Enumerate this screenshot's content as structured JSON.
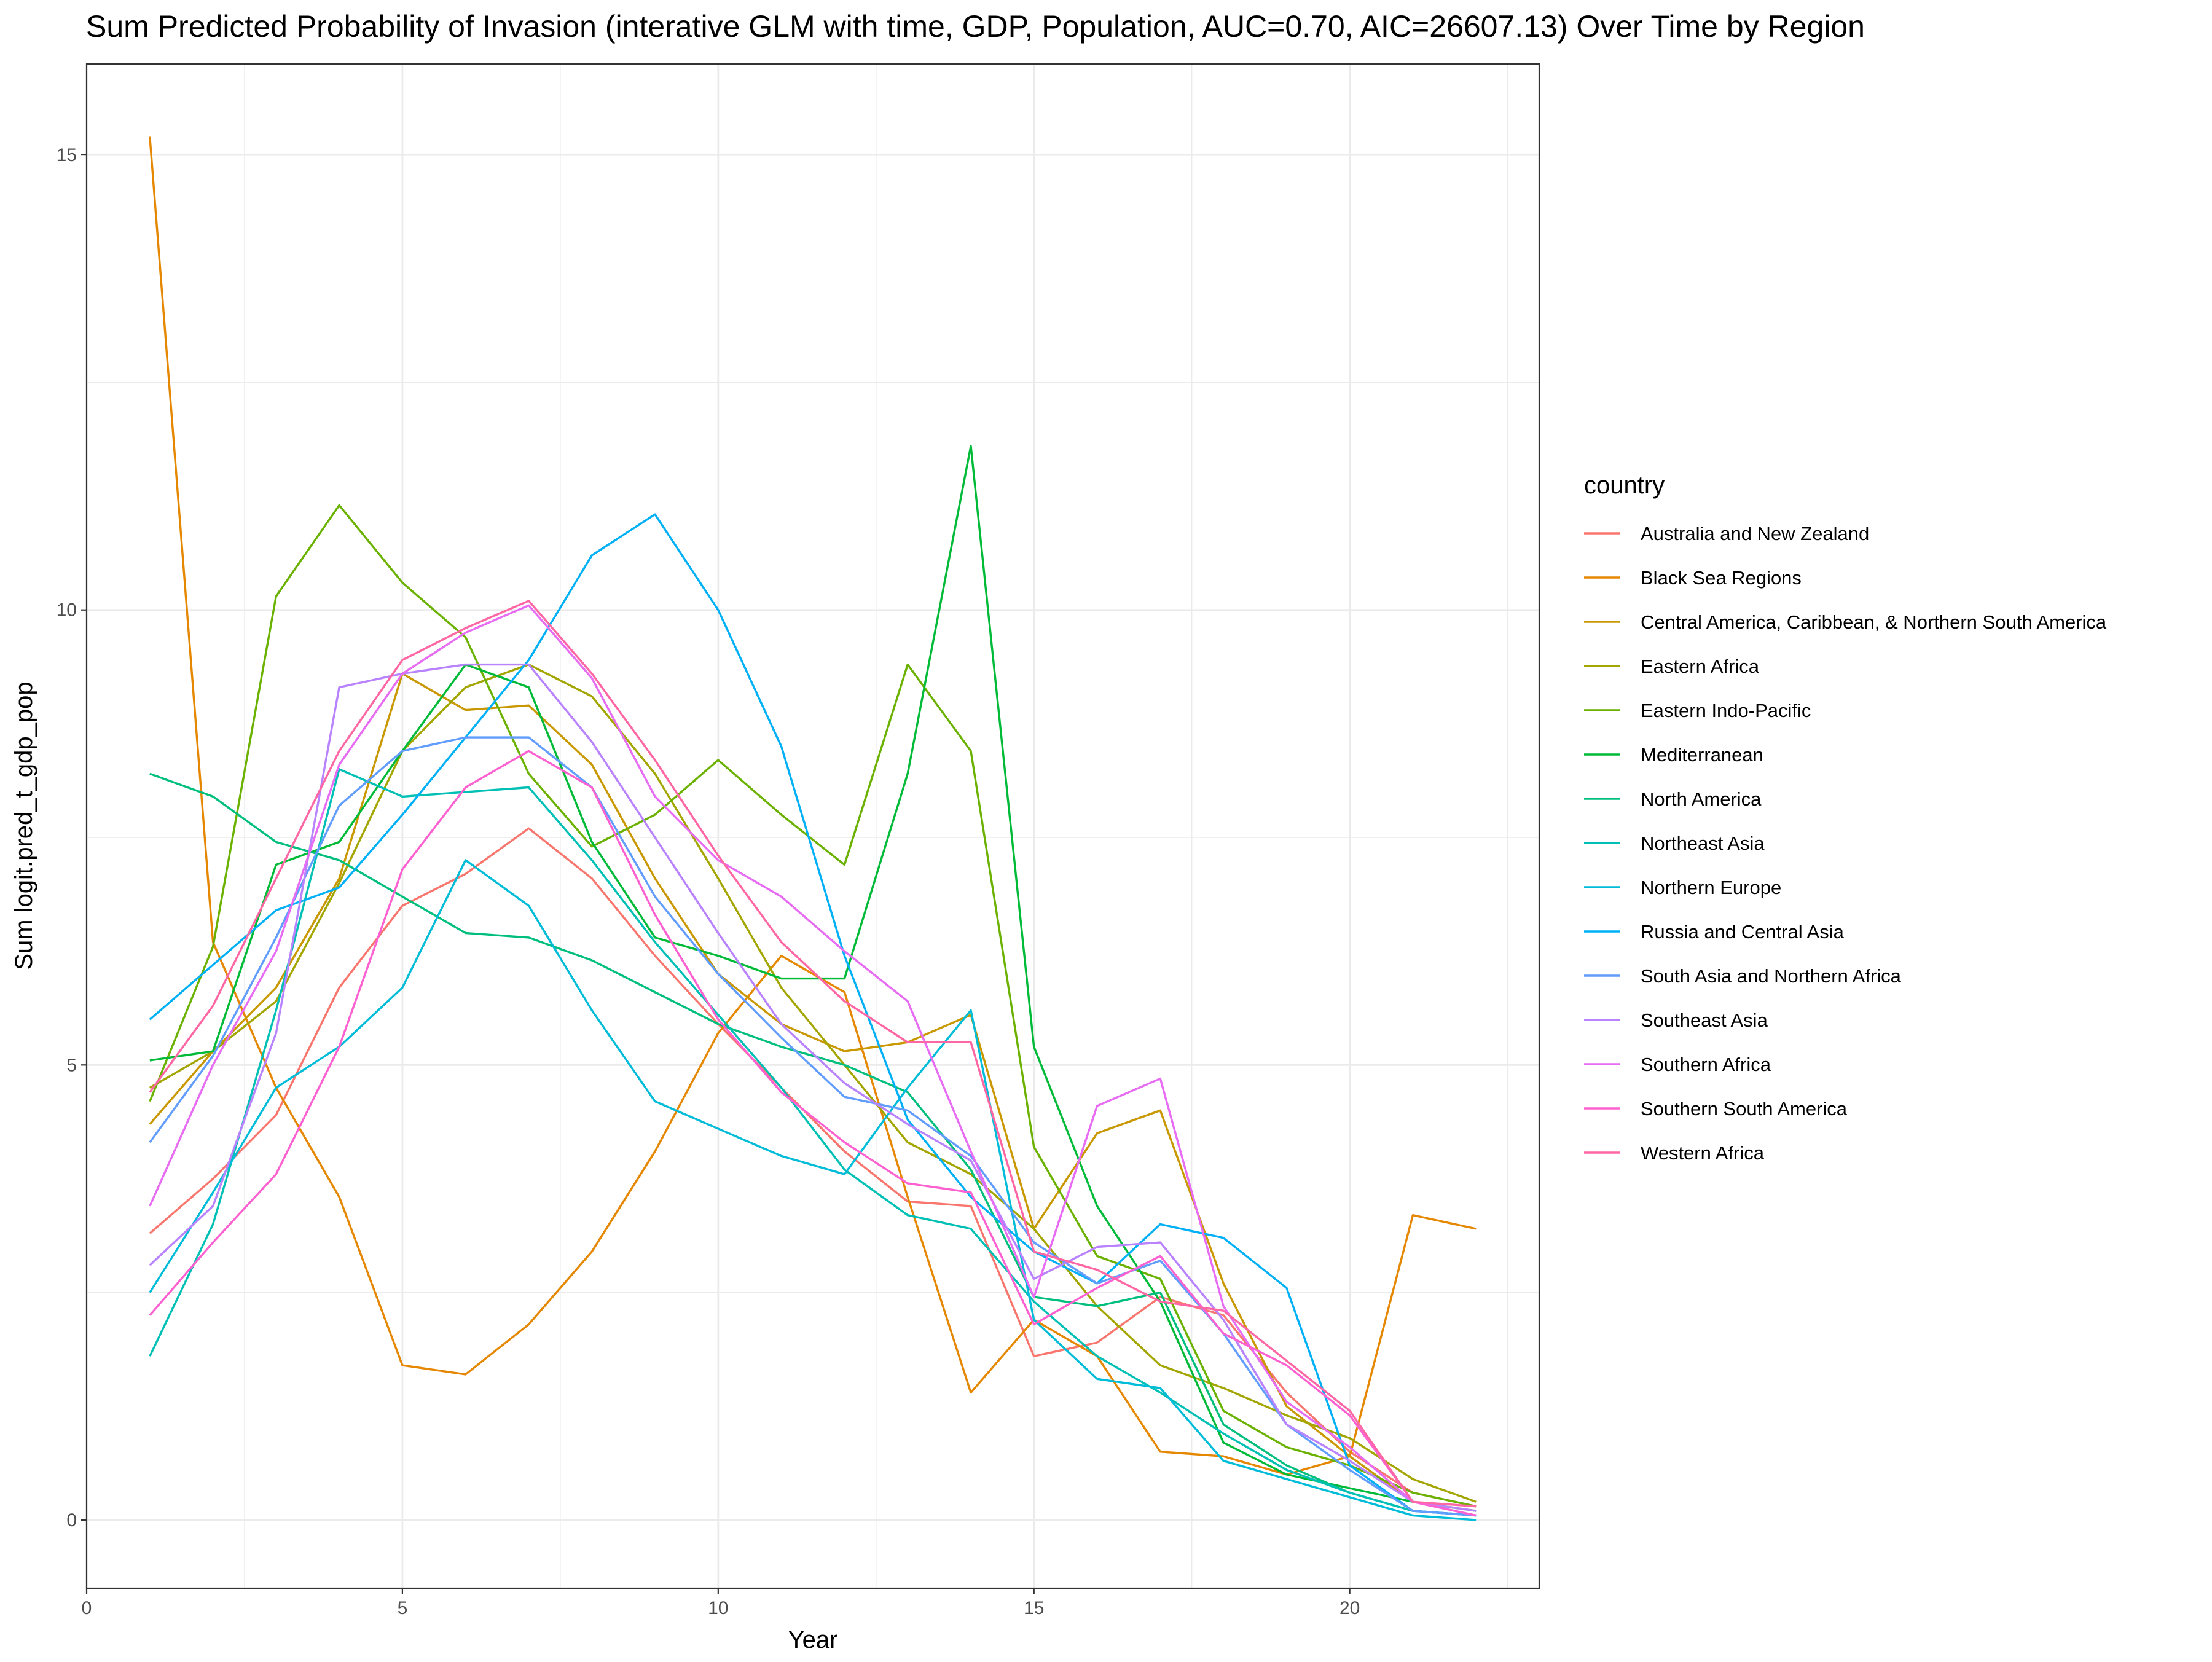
{
  "chart_data": {
    "type": "line",
    "title": "Sum Predicted Probability of Invasion (interative GLM with time, GDP, Population, AUC=0.70, AIC=26607.13) Over Time by Region",
    "xlabel": "Year",
    "ylabel": "Sum logit.pred_t_gdp_pop",
    "xlim": [
      0,
      23
    ],
    "ylim": [
      -0.75,
      16.0
    ],
    "x_ticks": [
      0,
      5,
      10,
      15,
      20
    ],
    "y_ticks": [
      0,
      5,
      10,
      15
    ],
    "x_tick_labels": [
      "0",
      "5",
      "10",
      "15",
      "20"
    ],
    "y_tick_labels": [
      "0",
      "5",
      "10",
      "15"
    ],
    "grid": true,
    "legend_position": "right",
    "legend_title": "country",
    "x": [
      1,
      2,
      3,
      4,
      5,
      6,
      7,
      8,
      9,
      10,
      11,
      12,
      13,
      14,
      15,
      16,
      17,
      18,
      19,
      20,
      21,
      22
    ],
    "series": [
      {
        "name": "Australia and New Zealand",
        "color": "#F8766D",
        "values": [
          3.15,
          3.75,
          4.45,
          5.85,
          6.75,
          7.1,
          7.6,
          7.05,
          6.2,
          5.45,
          4.75,
          4.05,
          3.5,
          3.45,
          1.8,
          1.95,
          2.45,
          2.25,
          1.4,
          0.75,
          0.3,
          0.15
        ]
      },
      {
        "name": "Black Sea Regions",
        "color": "#E58700",
        "values": [
          15.2,
          6.35,
          4.75,
          3.55,
          1.7,
          1.6,
          2.15,
          2.95,
          4.05,
          5.35,
          6.2,
          5.8,
          3.55,
          1.4,
          2.2,
          1.8,
          0.75,
          0.7,
          0.5,
          0.7,
          3.35,
          3.2
        ]
      },
      {
        "name": "Central America, Caribbean, & Northern South America",
        "color": "#C99800",
        "values": [
          4.35,
          5.15,
          5.85,
          7.05,
          9.3,
          8.9,
          8.95,
          8.3,
          7.05,
          6.0,
          5.45,
          5.15,
          5.25,
          5.55,
          3.2,
          4.25,
          4.5,
          2.6,
          1.25,
          0.7,
          0.2,
          0.1
        ]
      },
      {
        "name": "Eastern Africa",
        "color": "#A3A500",
        "values": [
          4.75,
          5.15,
          5.7,
          7.0,
          8.45,
          9.15,
          9.4,
          9.05,
          8.2,
          7.05,
          5.85,
          5.0,
          4.15,
          3.8,
          3.2,
          2.35,
          1.7,
          1.45,
          1.15,
          0.9,
          0.45,
          0.2
        ]
      },
      {
        "name": "Eastern Indo-Pacific",
        "color": "#6BB100",
        "values": [
          4.6,
          6.3,
          10.15,
          11.15,
          10.3,
          9.7,
          8.2,
          7.4,
          7.75,
          8.35,
          7.75,
          7.2,
          9.4,
          8.45,
          4.1,
          2.9,
          2.65,
          1.2,
          0.8,
          0.6,
          0.3,
          0.15
        ]
      },
      {
        "name": "Mediterranean",
        "color": "#00BA38",
        "values": [
          5.05,
          5.15,
          7.2,
          7.45,
          8.45,
          9.4,
          9.15,
          7.45,
          6.4,
          6.2,
          5.95,
          5.95,
          8.2,
          11.8,
          5.2,
          3.45,
          2.4,
          0.85,
          0.5,
          0.35,
          0.2,
          0.1
        ]
      },
      {
        "name": "North America",
        "color": "#00BF7D",
        "values": [
          8.2,
          7.95,
          7.45,
          7.25,
          6.85,
          6.45,
          6.4,
          6.15,
          5.8,
          5.45,
          5.2,
          5.0,
          4.7,
          3.85,
          2.45,
          2.35,
          2.5,
          1.05,
          0.6,
          0.3,
          0.1,
          0.05
        ]
      },
      {
        "name": "Northeast Asia",
        "color": "#00C0B5",
        "values": [
          1.8,
          3.25,
          5.6,
          8.25,
          7.95,
          8.0,
          8.05,
          7.25,
          6.35,
          5.55,
          4.75,
          3.85,
          3.35,
          3.2,
          2.4,
          1.8,
          1.4,
          0.95,
          0.55,
          0.3,
          0.1,
          0.05
        ]
      },
      {
        "name": "Northern Europe",
        "color": "#00BCD8",
        "values": [
          2.5,
          3.6,
          4.75,
          5.2,
          5.85,
          7.25,
          6.75,
          5.6,
          4.6,
          4.3,
          4.0,
          3.8,
          4.75,
          5.6,
          2.2,
          1.55,
          1.45,
          0.65,
          0.45,
          0.25,
          0.05,
          0.0
        ]
      },
      {
        "name": "Russia and Central Asia",
        "color": "#00B0F6",
        "values": [
          5.5,
          6.1,
          6.7,
          6.95,
          7.75,
          8.6,
          9.45,
          10.6,
          11.05,
          10.0,
          8.5,
          6.2,
          4.4,
          3.55,
          2.95,
          2.6,
          3.25,
          3.1,
          2.55,
          0.6,
          0.1,
          0.05
        ]
      },
      {
        "name": "South Asia and Northern Africa",
        "color": "#619CFF",
        "values": [
          4.15,
          5.1,
          6.4,
          7.85,
          8.45,
          8.6,
          8.6,
          8.05,
          6.85,
          6.0,
          5.3,
          4.65,
          4.5,
          4.0,
          3.05,
          2.6,
          2.85,
          2.05,
          1.05,
          0.55,
          0.1,
          0.05
        ]
      },
      {
        "name": "Southeast Asia",
        "color": "#B983FF",
        "values": [
          2.8,
          3.45,
          5.35,
          9.15,
          9.3,
          9.4,
          9.4,
          8.55,
          7.5,
          6.45,
          5.45,
          4.8,
          4.35,
          3.95,
          2.65,
          3.0,
          3.05,
          2.2,
          1.05,
          0.65,
          0.2,
          0.1
        ]
      },
      {
        "name": "Southern Africa",
        "color": "#E76BF3",
        "values": [
          3.45,
          5.0,
          6.25,
          8.3,
          9.3,
          9.75,
          10.05,
          9.25,
          7.95,
          7.25,
          6.85,
          6.25,
          5.7,
          4.05,
          2.45,
          4.55,
          4.85,
          2.35,
          1.3,
          0.8,
          0.2,
          0.05
        ]
      },
      {
        "name": "Southern South America",
        "color": "#FD61D1",
        "values": [
          2.25,
          3.05,
          3.8,
          5.2,
          7.15,
          8.05,
          8.45,
          8.05,
          6.65,
          5.5,
          4.7,
          4.15,
          3.7,
          3.6,
          2.15,
          2.55,
          2.9,
          2.05,
          1.7,
          1.15,
          0.2,
          0.05
        ]
      },
      {
        "name": "Western Africa",
        "color": "#FF67A4",
        "values": [
          4.7,
          5.65,
          7.05,
          8.45,
          9.45,
          9.8,
          10.1,
          9.3,
          8.35,
          7.3,
          6.35,
          5.7,
          5.25,
          5.25,
          2.95,
          2.75,
          2.4,
          2.3,
          1.75,
          1.2,
          0.2,
          0.15
        ]
      }
    ]
  }
}
